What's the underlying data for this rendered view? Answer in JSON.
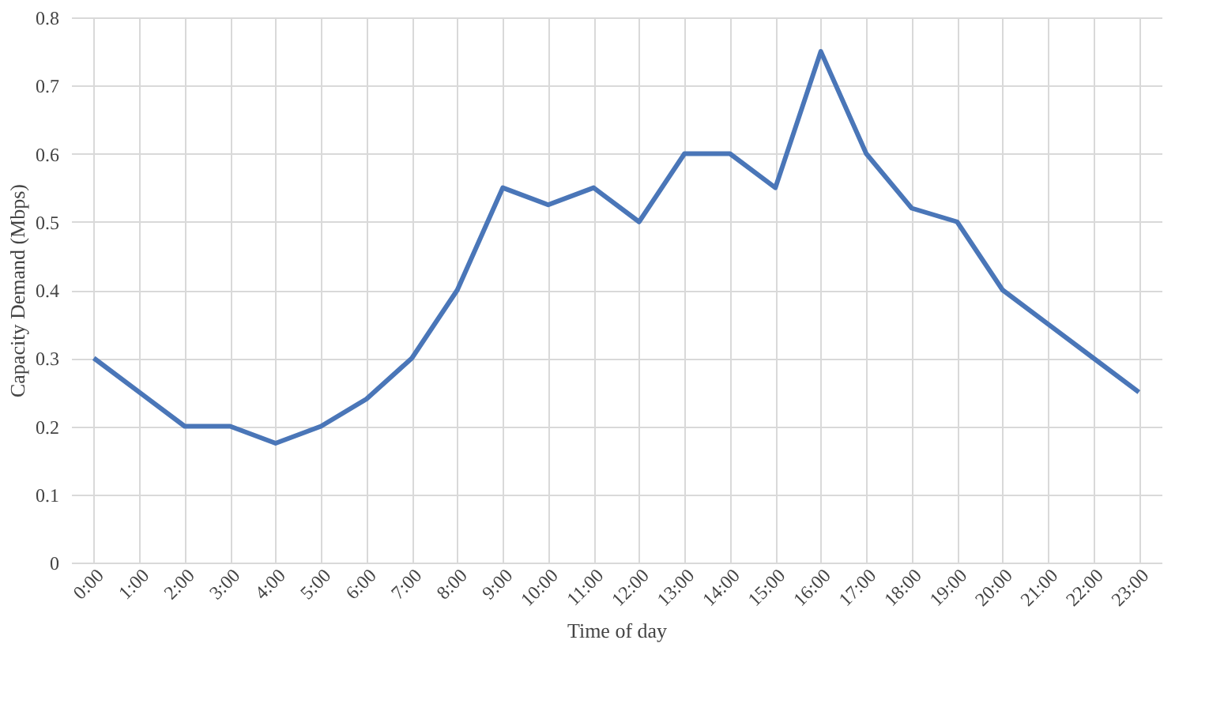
{
  "chart_data": {
    "type": "line",
    "xlabel": "Time of day",
    "ylabel": "Capacity Demand (Mbps)",
    "categories": [
      "0:00",
      "1:00",
      "2:00",
      "3:00",
      "4:00",
      "5:00",
      "6:00",
      "7:00",
      "8:00",
      "9:00",
      "10:00",
      "11:00",
      "12:00",
      "13:00",
      "14:00",
      "15:00",
      "16:00",
      "17:00",
      "18:00",
      "19:00",
      "20:00",
      "21:00",
      "22:00",
      "23:00"
    ],
    "series": [
      {
        "color": "#4a76b8",
        "values": [
          0.3,
          0.25,
          0.2,
          0.2,
          0.175,
          0.2,
          0.24,
          0.3,
          0.4,
          0.55,
          0.525,
          0.55,
          0.5,
          0.6,
          0.6,
          0.55,
          0.75,
          0.6,
          0.52,
          0.5,
          0.4,
          0.35,
          0.3,
          0.25
        ]
      }
    ],
    "ylim": [
      0,
      0.8
    ],
    "yticks": [
      0,
      0.1,
      0.2,
      0.3,
      0.4,
      0.5,
      0.6,
      0.7,
      0.8
    ],
    "grid": true,
    "marker": "none",
    "line_style": "solid"
  }
}
